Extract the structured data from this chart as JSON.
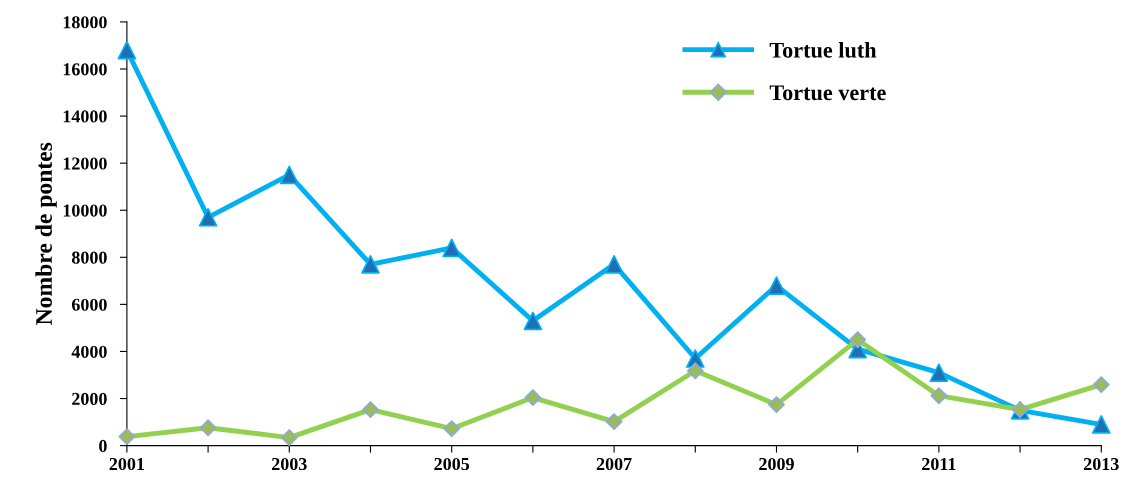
{
  "chart_data": {
    "type": "line",
    "ylabel": "Nombre de pontes",
    "x": [
      2001,
      2002,
      2003,
      2004,
      2005,
      2006,
      2007,
      2008,
      2009,
      2010,
      2011,
      2012,
      2013
    ],
    "series": [
      {
        "name": "Tortue luth",
        "color": "#00b0f0",
        "marker": "triangle",
        "values": [
          16800,
          9700,
          11500,
          7700,
          8400,
          5300,
          7700,
          3700,
          6800,
          4100,
          3100,
          1500,
          900
        ]
      },
      {
        "name": "Tortue verte",
        "color": "#92d050",
        "marker": "diamond",
        "values": [
          380,
          760,
          340,
          1530,
          720,
          2040,
          1020,
          3180,
          1740,
          4500,
          2120,
          1530,
          2590
        ]
      }
    ],
    "xlim": [
      2001,
      2013
    ],
    "xticks": [
      2001,
      {
        "value": 2002,
        "label": null
      },
      2003,
      {
        "value": 2004,
        "label": null
      },
      2005,
      {
        "value": 2006,
        "label": null
      },
      2007,
      {
        "value": 2008,
        "label": null
      },
      2009,
      {
        "value": 2010,
        "label": null
      },
      2011,
      {
        "value": 2012,
        "label": null
      },
      2013
    ],
    "ylim": [
      0,
      18000
    ],
    "yticks": [
      0,
      2000,
      4000,
      6000,
      8000,
      10000,
      12000,
      14000,
      16000,
      18000
    ],
    "grid": false,
    "legend": "top right",
    "line_style": "solid"
  }
}
